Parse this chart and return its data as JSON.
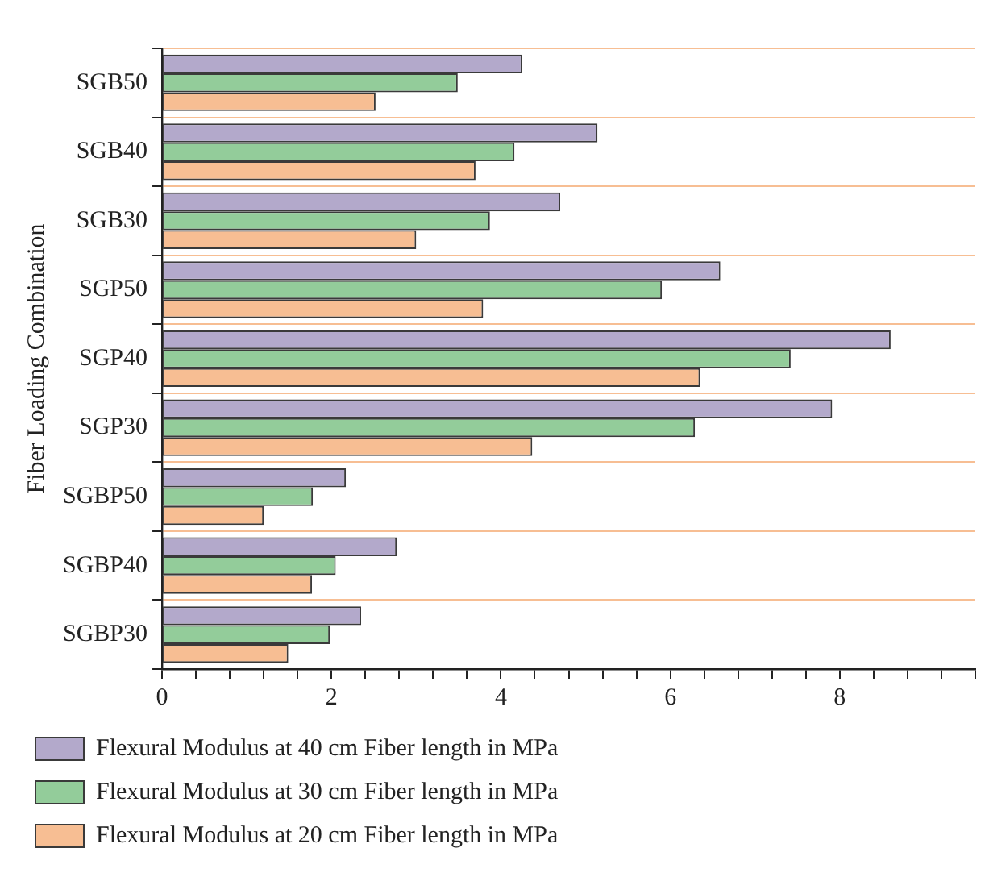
{
  "chart_data": {
    "type": "bar",
    "orientation": "horizontal",
    "ylabel": "Fiber Loading Combination",
    "categories": [
      "SGB50",
      "SGB40",
      "SGB30",
      "SGP50",
      "SGP40",
      "SGP30",
      "SGBP50",
      "SGBP40",
      "SGBP30"
    ],
    "series": [
      {
        "name": "Flexural Modulus at 40 cm Fiber length in MPa",
        "color": "#b3a9cb",
        "values": [
          4.25,
          5.14,
          4.7,
          6.59,
          8.6,
          7.91,
          2.17,
          2.77,
          2.35
        ]
      },
      {
        "name": "Flexural Modulus at 30 cm Fiber length in MPa",
        "color": "#93cc9a",
        "values": [
          3.49,
          4.16,
          3.87,
          5.9,
          7.42,
          6.29,
          1.78,
          2.05,
          1.98
        ]
      },
      {
        "name": "Flexural Modulus at 20 cm Fiber length in MPa",
        "color": "#f7be93",
        "values": [
          2.52,
          3.7,
          3.0,
          3.79,
          6.35,
          4.37,
          1.2,
          1.77,
          1.49
        ]
      }
    ],
    "xlim": [
      0,
      9.6
    ],
    "xticks": [
      0,
      {
        "value": 0.4,
        "label": null
      },
      {
        "value": 0.8,
        "label": null
      },
      {
        "value": 1.2,
        "label": null
      },
      {
        "value": 1.6,
        "label": null
      },
      2,
      {
        "value": 2.4,
        "label": null
      },
      {
        "value": 2.8,
        "label": null
      },
      {
        "value": 3.2,
        "label": null
      },
      {
        "value": 3.6,
        "label": null
      },
      4,
      {
        "value": 4.4,
        "label": null
      },
      {
        "value": 4.8,
        "label": null
      },
      {
        "value": 5.2,
        "label": null
      },
      {
        "value": 5.6,
        "label": null
      },
      6,
      {
        "value": 6.4,
        "label": null
      },
      {
        "value": 6.8,
        "label": null
      },
      {
        "value": 7.2,
        "label": null
      },
      {
        "value": 7.6,
        "label": null
      },
      8,
      {
        "value": 8.4,
        "label": null
      },
      {
        "value": 8.8,
        "label": null
      },
      {
        "value": 9.2,
        "label": null
      },
      {
        "value": 9.6,
        "label": null
      }
    ],
    "grid": "y",
    "legend": "bottom"
  }
}
